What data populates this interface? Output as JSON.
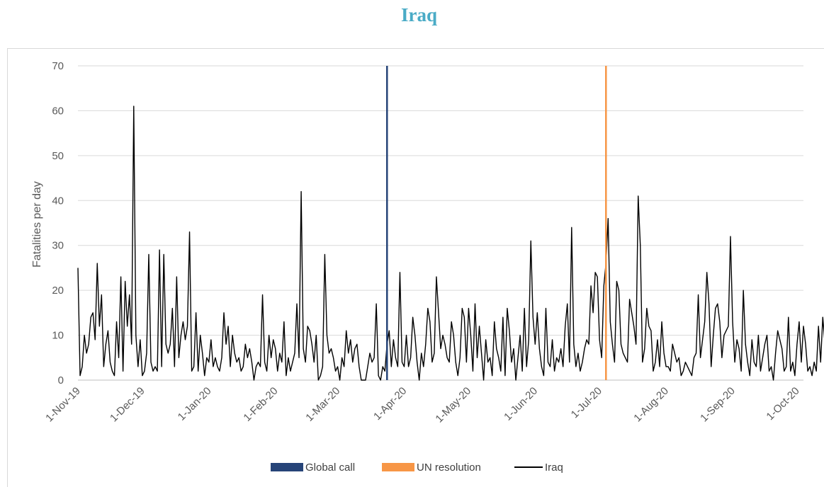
{
  "title": "Iraq",
  "chart_data": {
    "type": "line",
    "title": "Iraq",
    "ylabel": "Fatalities per day",
    "xlabel": "",
    "ylim": [
      0,
      70
    ],
    "yticks": [
      0,
      10,
      20,
      30,
      40,
      50,
      60,
      70
    ],
    "x_start": "1-Nov-19",
    "x_end": "4-Oct-20",
    "xtick_labels": [
      "1-Nov-19",
      "1-Dec-19",
      "1-Jan-20",
      "1-Feb-20",
      "1-Mar-20",
      "1-Apr-20",
      "1-May-20",
      "1-Jun-20",
      "1-Jul-20",
      "1-Aug-20",
      "1-Sep-20",
      "1-Oct-20"
    ],
    "xtick_days": [
      0,
      30,
      61,
      92,
      121,
      152,
      182,
      213,
      243,
      274,
      305,
      335
    ],
    "grid": true,
    "legend_position": "bottom",
    "markers": [
      {
        "name": "Global call",
        "day": 144,
        "color": "#264478"
      },
      {
        "name": "UN resolution",
        "day": 246,
        "color": "#f79646"
      }
    ],
    "series": [
      {
        "name": "Iraq",
        "color": "#000000",
        "values": [
          25,
          1,
          3,
          10,
          6,
          8,
          14,
          15,
          9,
          26,
          12,
          19,
          3,
          8,
          11,
          4,
          2,
          1,
          13,
          5,
          23,
          2,
          22,
          12,
          19,
          8,
          61,
          10,
          3,
          9,
          1,
          2,
          6,
          28,
          4,
          2,
          3,
          2,
          29,
          3,
          28,
          8,
          6,
          8,
          16,
          3,
          23,
          5,
          10,
          13,
          9,
          12,
          33,
          2,
          3,
          15,
          2,
          10,
          6,
          1,
          5,
          4,
          9,
          3,
          5,
          3,
          2,
          5,
          15,
          8,
          12,
          3,
          10,
          6,
          4,
          5,
          2,
          3,
          8,
          5,
          7,
          4,
          0,
          3,
          4,
          3,
          19,
          4,
          2,
          10,
          5,
          9,
          7,
          2,
          6,
          4,
          13,
          1,
          5,
          2,
          4,
          6,
          17,
          5,
          42,
          7,
          4,
          12,
          11,
          8,
          4,
          10,
          0,
          1,
          3,
          28,
          10,
          6,
          7,
          5,
          2,
          3,
          0,
          5,
          3,
          11,
          6,
          9,
          4,
          7,
          8,
          3,
          0,
          0,
          0,
          3,
          6,
          4,
          5,
          17,
          1,
          0,
          3,
          2,
          8,
          11,
          3,
          9,
          5,
          3,
          24,
          4,
          3,
          10,
          3,
          5,
          14,
          10,
          4,
          0,
          6,
          3,
          8,
          16,
          13,
          4,
          6,
          23,
          15,
          7,
          10,
          8,
          5,
          4,
          13,
          10,
          4,
          1,
          5,
          16,
          14,
          4,
          16,
          10,
          2,
          17,
          5,
          12,
          6,
          0,
          9,
          4,
          5,
          1,
          13,
          7,
          5,
          2,
          14,
          1,
          16,
          11,
          4,
          7,
          0,
          5,
          10,
          2,
          16,
          3,
          9,
          31,
          14,
          8,
          15,
          7,
          3,
          1,
          16,
          4,
          3,
          9,
          2,
          5,
          4,
          7,
          3,
          12,
          17,
          4,
          34,
          8,
          3,
          6,
          2,
          4,
          7,
          9,
          8,
          21,
          15,
          24,
          23,
          9,
          5,
          21,
          26,
          36,
          13,
          8,
          4,
          22,
          20,
          8,
          6,
          5,
          4,
          18,
          15,
          12,
          8,
          41,
          30,
          4,
          7,
          16,
          12,
          11,
          2,
          4,
          9,
          3,
          13,
          6,
          3,
          3,
          2,
          8,
          6,
          4,
          5,
          1,
          2,
          4,
          3,
          2,
          1,
          5,
          6,
          19,
          5,
          9,
          13,
          24,
          17,
          3,
          10,
          16,
          17,
          13,
          5,
          10,
          11,
          12,
          32,
          13,
          4,
          9,
          7,
          2,
          20,
          8,
          4,
          1,
          9,
          4,
          3,
          10,
          2,
          5,
          8,
          10,
          2,
          3,
          0,
          6,
          11,
          9,
          7,
          2,
          3,
          14,
          2,
          4,
          1,
          8,
          13,
          4,
          12,
          8,
          2,
          3,
          1,
          4,
          2,
          12,
          4,
          14,
          8,
          6,
          2,
          14,
          8,
          3
        ],
        "note": ""
      }
    ]
  }
}
